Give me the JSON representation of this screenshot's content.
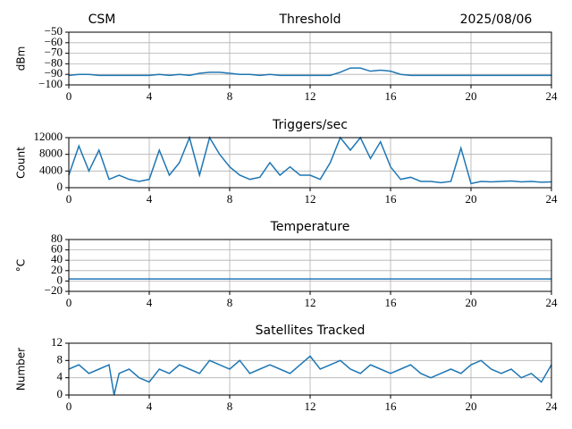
{
  "chart_data": [
    {
      "type": "line",
      "title": "Threshold",
      "title_left": "CSM",
      "title_right": "2025/08/06",
      "ylabel": "dBm",
      "grid": true,
      "xlim": [
        0,
        24
      ],
      "xticks": [
        0,
        4,
        8,
        12,
        16,
        20,
        24
      ],
      "ylim": [
        -100,
        -50
      ],
      "yticks": [
        {
          "value": -100,
          "label": "−100"
        },
        {
          "value": -90,
          "label": "−90"
        },
        {
          "value": -80,
          "label": "−80"
        },
        {
          "value": -70,
          "label": "−70"
        },
        {
          "value": -60,
          "label": "−60"
        },
        {
          "value": -50,
          "label": "−50"
        }
      ],
      "series": [
        {
          "color": "#1f77b4",
          "x": [
            0,
            0.5,
            1,
            1.5,
            2,
            2.5,
            3,
            3.5,
            4,
            4.5,
            5,
            5.5,
            6,
            6.5,
            7,
            7.5,
            8,
            8.5,
            9,
            9.5,
            10,
            10.5,
            11,
            11.5,
            12,
            12.5,
            13,
            13.5,
            14,
            14.5,
            15,
            15.5,
            16,
            16.5,
            17,
            17.5,
            18,
            18.5,
            19,
            19.5,
            20,
            20.5,
            21,
            21.5,
            22,
            22.5,
            23,
            23.5,
            24
          ],
          "values": [
            -91,
            -90,
            -90,
            -91,
            -91,
            -91,
            -91,
            -91,
            -91,
            -90,
            -91,
            -90,
            -91,
            -89,
            -88,
            -88,
            -89,
            -90,
            -90,
            -91,
            -90,
            -91,
            -91,
            -91,
            -91,
            -91,
            -91,
            -88,
            -84,
            -84,
            -87,
            -86,
            -87,
            -90,
            -91,
            -91,
            -91,
            -91,
            -91,
            -91,
            -91,
            -91,
            -91,
            -91,
            -91,
            -91,
            -91,
            -91,
            -91
          ]
        }
      ]
    },
    {
      "type": "line",
      "title": "Triggers/sec",
      "ylabel": "Count",
      "grid": true,
      "xlim": [
        0,
        24
      ],
      "xticks": [
        0,
        4,
        8,
        12,
        16,
        20,
        24
      ],
      "ylim": [
        0,
        12000
      ],
      "yticks": [
        0,
        4000,
        8000,
        12000
      ],
      "series": [
        {
          "color": "#1f77b4",
          "x": [
            0,
            0.5,
            1,
            1.5,
            2,
            2.5,
            3,
            3.5,
            4,
            4.5,
            5,
            5.5,
            6,
            6.5,
            7,
            7.5,
            8,
            8.5,
            9,
            9.5,
            10,
            10.5,
            11,
            11.5,
            12,
            12.5,
            13,
            13.5,
            14,
            14.5,
            15,
            15.5,
            16,
            16.5,
            17,
            17.5,
            18,
            18.5,
            19,
            19.5,
            20,
            20.5,
            21,
            21.5,
            22,
            22.5,
            23,
            23.5,
            24
          ],
          "values": [
            3000,
            10000,
            4000,
            9000,
            2000,
            3000,
            2000,
            1500,
            2000,
            9000,
            3000,
            6000,
            12000,
            3000,
            12000,
            8000,
            5000,
            3000,
            2000,
            2500,
            6000,
            3000,
            5000,
            3000,
            3000,
            2000,
            6000,
            12000,
            9000,
            12000,
            7000,
            11000,
            5000,
            2000,
            2500,
            1500,
            1500,
            1200,
            1500,
            9500,
            1000,
            1500,
            1400,
            1500,
            1600,
            1400,
            1500,
            1300,
            1400
          ]
        }
      ]
    },
    {
      "type": "line",
      "title": "Temperature",
      "ylabel": "°C",
      "grid": true,
      "xlim": [
        0,
        24
      ],
      "xticks": [
        0,
        4,
        8,
        12,
        16,
        20,
        24
      ],
      "ylim": [
        -20,
        80
      ],
      "yticks": [
        {
          "value": -20,
          "label": "−20"
        },
        0,
        20,
        40,
        60,
        80
      ],
      "series": [
        {
          "color": "#1f77b4",
          "x": [
            0,
            24
          ],
          "values": [
            4,
            4
          ]
        }
      ]
    },
    {
      "type": "line",
      "title": "Satellites Tracked",
      "ylabel": "Number",
      "grid": true,
      "xlim": [
        0,
        24
      ],
      "xticks": [
        0,
        4,
        8,
        12,
        16,
        20,
        24
      ],
      "ylim": [
        0,
        12
      ],
      "yticks": [
        0,
        4,
        8,
        12
      ],
      "series": [
        {
          "color": "#1f77b4",
          "x": [
            0,
            0.5,
            1,
            1.5,
            2,
            2.25,
            2.5,
            3,
            3.5,
            4,
            4.5,
            5,
            5.5,
            6,
            6.5,
            7,
            7.5,
            8,
            8.5,
            9,
            9.5,
            10,
            10.5,
            11,
            11.5,
            12,
            12.5,
            13,
            13.5,
            14,
            14.5,
            15,
            15.5,
            16,
            16.5,
            17,
            17.5,
            18,
            18.5,
            19,
            19.5,
            20,
            20.5,
            21,
            21.5,
            22,
            22.5,
            23,
            23.5,
            24
          ],
          "values": [
            6,
            7,
            5,
            6,
            7,
            0,
            5,
            6,
            4,
            3,
            6,
            5,
            7,
            6,
            5,
            8,
            7,
            6,
            8,
            5,
            6,
            7,
            6,
            5,
            7,
            9,
            6,
            7,
            8,
            6,
            5,
            7,
            6,
            5,
            6,
            7,
            5,
            4,
            5,
            6,
            5,
            7,
            8,
            6,
            5,
            6,
            4,
            5,
            3,
            7
          ]
        }
      ]
    }
  ]
}
